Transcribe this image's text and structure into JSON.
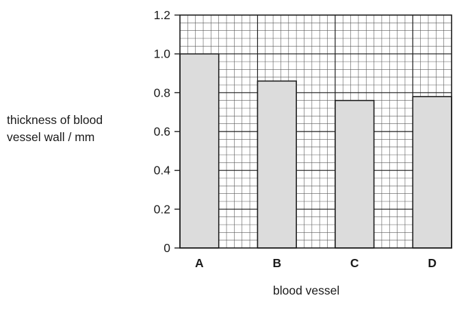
{
  "chart_data": {
    "type": "bar",
    "title": "",
    "xlabel": "blood vessel",
    "ylabel_lines": [
      "thickness of blood",
      "vessel wall / mm"
    ],
    "categories": [
      "A",
      "B",
      "C",
      "D"
    ],
    "values": [
      1.0,
      0.86,
      0.76,
      0.78
    ],
    "ylim": [
      0,
      1.2
    ],
    "yticks": [
      "0",
      "0.2",
      "0.4",
      "0.6",
      "0.8",
      "1.0",
      "1.2"
    ],
    "grid": true,
    "bar_color": "#dcdcdc",
    "grid_color": "#555555"
  }
}
